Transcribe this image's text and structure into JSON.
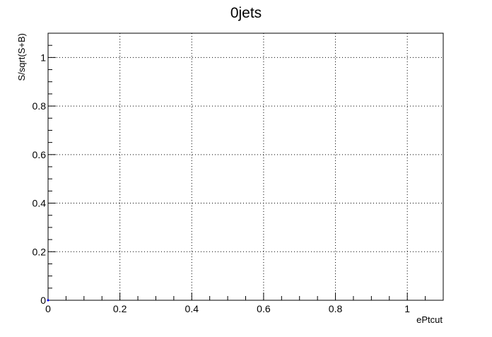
{
  "chart_data": {
    "type": "scatter",
    "title": "0jets",
    "xlabel": "ePtcut",
    "ylabel": "S/sqrt(S+B)",
    "xlim": [
      0,
      1.1
    ],
    "ylim": [
      0,
      1.1
    ],
    "x_ticks": [
      0,
      0.2,
      0.4,
      0.6,
      0.8,
      1
    ],
    "x_tick_labels": [
      "0",
      "0.2",
      "0.4",
      "0.6",
      "0.8",
      "1"
    ],
    "y_ticks": [
      0,
      0.2,
      0.4,
      0.6,
      0.8,
      1
    ],
    "y_tick_labels": [
      "0",
      "0.2",
      "0.4",
      "0.6",
      "0.8",
      "1"
    ],
    "grid": true,
    "series": [
      {
        "x": [
          0
        ],
        "y": [
          0
        ],
        "color": "#0000ff"
      }
    ]
  }
}
